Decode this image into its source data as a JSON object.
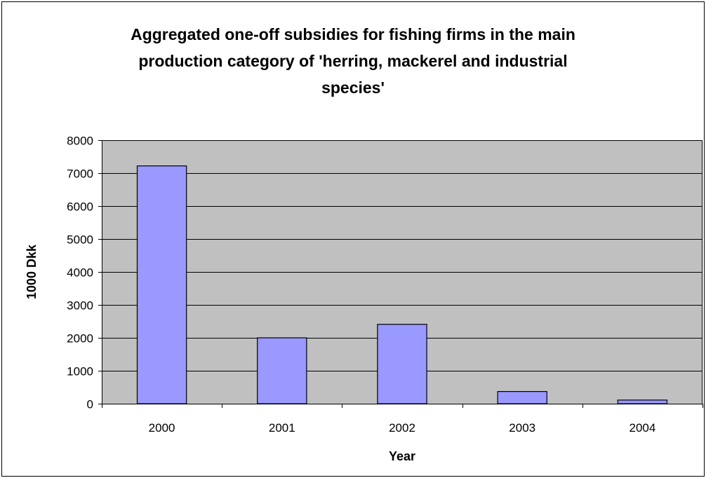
{
  "chart_data": {
    "type": "bar",
    "title_lines": [
      "Aggregated one-off subsidies for fishing firms in the main",
      "production category of 'herring, mackerel and industrial",
      "species'"
    ],
    "xlabel": "Year",
    "ylabel": "1000 Dkk",
    "categories": [
      "2000",
      "2001",
      "2002",
      "2003",
      "2004"
    ],
    "values": [
      7220,
      2000,
      2410,
      370,
      110
    ],
    "ylim": [
      0,
      8000
    ],
    "yticks": [
      "0",
      "1000",
      "2000",
      "3000",
      "4000",
      "5000",
      "6000",
      "7000",
      "8000"
    ],
    "grid": true,
    "legend": "none"
  },
  "colors": {
    "plot_background": "#c0c0c0",
    "bar_fill": "#9999ff",
    "bar_stroke": "#000000",
    "gridline": "#000000",
    "frame": "#000000"
  }
}
